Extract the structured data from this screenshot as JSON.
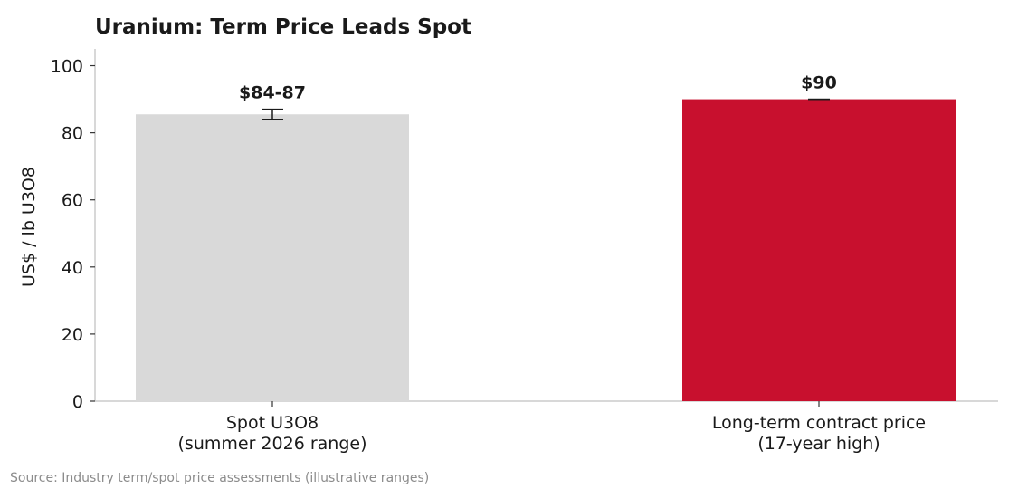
{
  "chart_data": {
    "type": "bar",
    "title": "Uranium: Term Price Leads Spot",
    "ylabel": "US$ / lb U3O8",
    "xlabel": "",
    "ylim": [
      0,
      105
    ],
    "yticks": [
      0,
      20,
      40,
      60,
      80,
      100
    ],
    "grid": false,
    "categories": [
      [
        "Spot U3O8",
        "(summer 2026 range)"
      ],
      [
        "Long-term contract price",
        "(17-year high)"
      ]
    ],
    "values": [
      85.5,
      90
    ],
    "error_ranges": [
      [
        84,
        87
      ],
      [
        90,
        90
      ]
    ],
    "data_labels": [
      "$84-87",
      "$90"
    ],
    "colors": [
      "#d9d9d9",
      "#c8102e"
    ]
  },
  "source_note": "Source: Industry term/spot price assessments (illustrative ranges)"
}
